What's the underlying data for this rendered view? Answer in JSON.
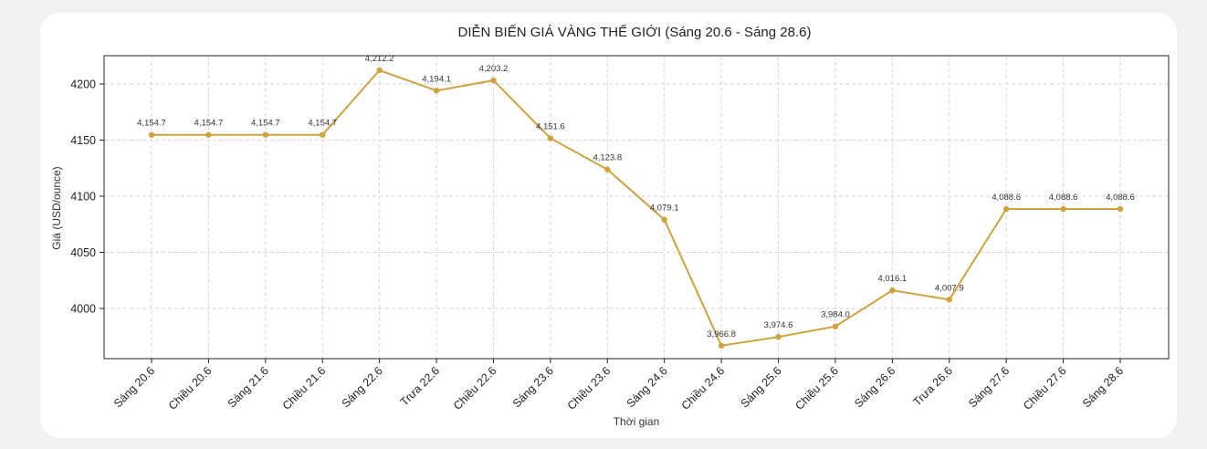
{
  "chart_data": {
    "type": "line",
    "title": "DIỄN BIẾN GIÁ VÀNG THẾ GIỚI (Sáng 20.6 - Sáng 28.6)",
    "xlabel": "Thời gian",
    "ylabel": "Giá (USD/ounce)",
    "categories": [
      "Sáng 20.6",
      "Chiều 20.6",
      "Sáng 21.6",
      "Chiều 21.6",
      "Sáng 22.6",
      "Trưa 22.6",
      "Chiều 22.6",
      "Sáng 23.6",
      "Chiều 23.6",
      "Sáng 24.6",
      "Chiều 24.6",
      "Sáng 25.6",
      "Chiều 25.6",
      "Sáng 26.6",
      "Trưa 26.6",
      "Sáng 27.6",
      "Chiều 27.6",
      "Sáng 28.6"
    ],
    "series": [
      {
        "values": [
          4154.7,
          4154.7,
          4154.7,
          4154.7,
          4212.2,
          4194.1,
          4203.2,
          4151.6,
          4123.8,
          4079.1,
          3966.8,
          3974.6,
          3984.0,
          4016.1,
          4007.9,
          4088.6,
          4088.6,
          4088.6
        ],
        "data_labels": [
          "4,154.7",
          "4,154.7",
          "4,154.7",
          "4,154.7",
          "4,212.2",
          "4,194.1",
          "4,203.2",
          "4,151.6",
          "4,123.8",
          "4,079.1",
          "3,966.8",
          "3,974.6",
          "3,984.0",
          "4,016.1",
          "4,007.9",
          "4,088.6",
          "4,088.6",
          "4,088.6"
        ],
        "color": "#cfa23e"
      }
    ],
    "yticks": [
      4000,
      4050,
      4100,
      4150,
      4200
    ],
    "ylim": [
      3955,
      4225
    ],
    "grid": true,
    "grid_style": "dashed",
    "marker": "circle",
    "x_tick_rotation": 45
  }
}
